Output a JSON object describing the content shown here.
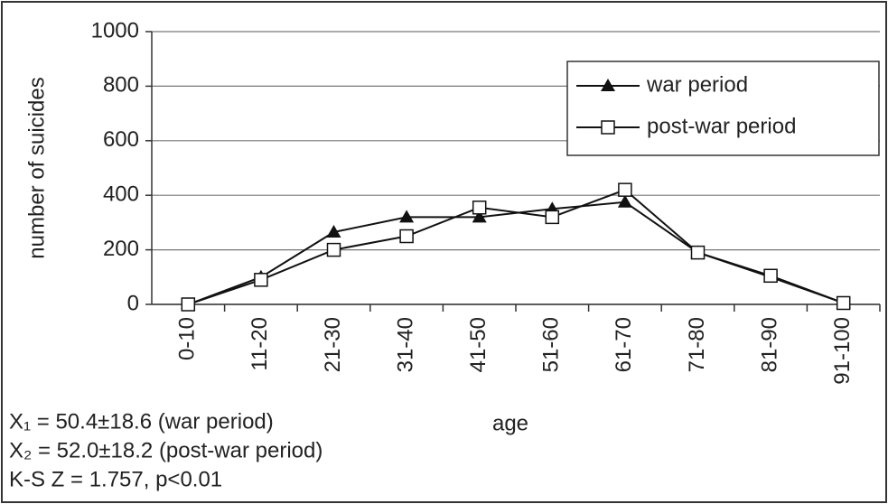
{
  "chart_data": {
    "type": "line",
    "categories": [
      "0-10",
      "11-20",
      "21-30",
      "31-40",
      "41-50",
      "51-60",
      "61-70",
      "71-80",
      "81-90",
      "91-100"
    ],
    "series": [
      {
        "name": "war period",
        "color": "#111111",
        "marker": "triangle",
        "values": [
          0,
          100,
          265,
          320,
          320,
          350,
          375,
          190,
          100,
          5
        ]
      },
      {
        "name": "post-war period",
        "color": "#111111",
        "marker": "square",
        "values": [
          0,
          90,
          200,
          250,
          355,
          320,
          420,
          190,
          105,
          5
        ]
      }
    ],
    "xlabel": "age",
    "ylabel": "number of suicides",
    "ylim": [
      0,
      1000
    ],
    "yticks": [
      0,
      200,
      400,
      600,
      800,
      1000
    ],
    "grid": true,
    "legend": "upper right",
    "annotations": [
      "X₁ = 50.4±18.6 (war period)",
      "X₂ = 52.0±18.2 (post-war period)",
      "K-S Z = 1.757, p<0.01"
    ]
  }
}
